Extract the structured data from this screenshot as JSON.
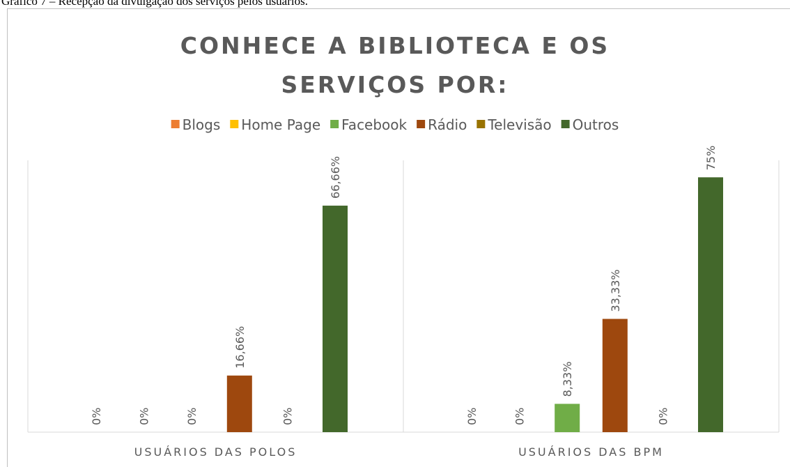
{
  "caption": "Gráfico 7 – Recepção da divulgação dos serviços pelos usuários.",
  "chart_data": {
    "type": "bar",
    "title": "CONHECE A BIBLIOTECA E OS SERVIÇOS POR:",
    "categories": [
      "USUÁRIOS DAS POLOS",
      "USUÁRIOS DAS BPM"
    ],
    "ylim": [
      0,
      80
    ],
    "series": [
      {
        "name": "Blogs",
        "color": "#ed7d31",
        "values": [
          0,
          0
        ],
        "value_labels": [
          "0%",
          "0%"
        ]
      },
      {
        "name": "Home Page",
        "color": "#ffc000",
        "values": [
          0,
          0
        ],
        "value_labels": [
          "0%",
          "0%"
        ]
      },
      {
        "name": "Facebook",
        "color": "#70ad47",
        "values": [
          0,
          8.33
        ],
        "value_labels": [
          "0%",
          "8,33%"
        ]
      },
      {
        "name": "Rádio",
        "color": "#9e480e",
        "values": [
          16.66,
          33.33
        ],
        "value_labels": [
          "16,66%",
          "33,33%"
        ]
      },
      {
        "name": "Televisão",
        "color": "#997300",
        "values": [
          0,
          0
        ],
        "value_labels": [
          "0%",
          "0%"
        ]
      },
      {
        "name": "Outros",
        "color": "#43682b",
        "values": [
          66.66,
          75
        ],
        "value_labels": [
          "66,66%",
          "75%"
        ]
      }
    ]
  }
}
